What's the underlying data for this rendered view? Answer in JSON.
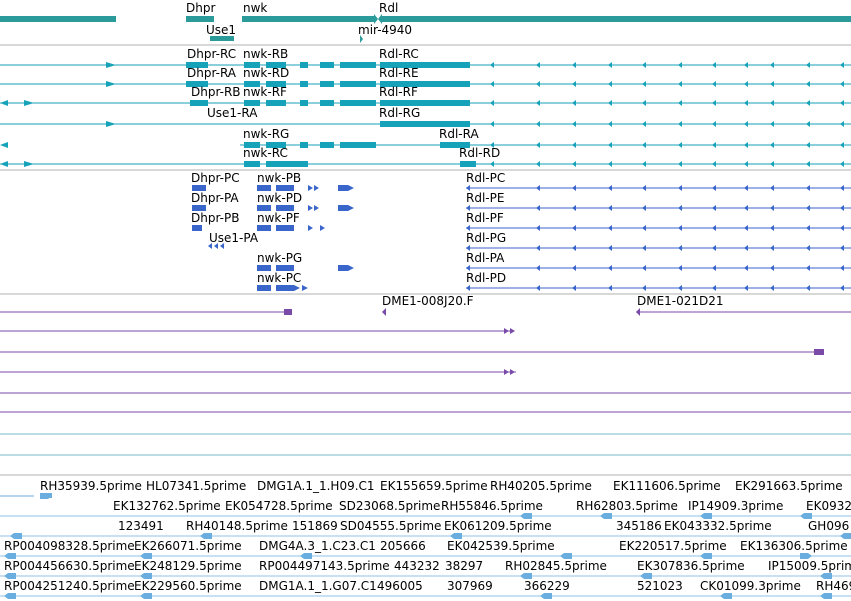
{
  "colors": {
    "gene": "#2a9a9a",
    "transcript_fly": "#16a2b8",
    "transcript_flyproj": "#3a66cc",
    "clone": "#7a4aa8",
    "est": "#6aaee0",
    "separator": "#b0b0b0"
  },
  "gene_labels": {
    "dhpr": "Dhpr",
    "nwk": "nwk",
    "rdl": "Rdl",
    "use1": "Use1",
    "mir": "mir-4940"
  },
  "transcripts_a": [
    {
      "label": "Dhpr-RC"
    },
    {
      "label": "nwk-RB"
    },
    {
      "label": "Rdl-RC"
    },
    {
      "label": "Dhpr-RA"
    },
    {
      "label": "nwk-RD"
    },
    {
      "label": "Rdl-RE"
    },
    {
      "label": "Dhpr-RB"
    },
    {
      "label": "nwk-RF"
    },
    {
      "label": "Rdl-RF"
    },
    {
      "label": "Use1-RA"
    },
    {
      "label": "Rdl-RG"
    },
    {
      "label": "nwk-RG"
    },
    {
      "label": "Rdl-RA"
    },
    {
      "label": "nwk-RC"
    },
    {
      "label": "Rdl-RD"
    }
  ],
  "transcripts_b": [
    {
      "label": "Dhpr-PC"
    },
    {
      "label": "nwk-PB"
    },
    {
      "label": "Rdl-PC"
    },
    {
      "label": "Dhpr-PA"
    },
    {
      "label": "nwk-PD"
    },
    {
      "label": "Rdl-PE"
    },
    {
      "label": "Dhpr-PB"
    },
    {
      "label": "nwk-PF"
    },
    {
      "label": "Rdl-PF"
    },
    {
      "label": "Use1-PA"
    },
    {
      "label": "Rdl-PG"
    },
    {
      "label": "nwk-PG"
    },
    {
      "label": "Rdl-PA"
    },
    {
      "label": "nwk-PC"
    },
    {
      "label": "Rdl-PD"
    }
  ],
  "clone_labels": [
    {
      "label": "DME1-008J20.F"
    },
    {
      "label": "DME1-021D21"
    }
  ],
  "est_labels": [
    {
      "label": "RH35939.5prime"
    },
    {
      "label": "HL07341.5prime"
    },
    {
      "label": "DMG1A.1_1.H09.C1"
    },
    {
      "label": "EK155659.5prime"
    },
    {
      "label": "RH40205.5prime"
    },
    {
      "label": "EK111606.5prime"
    },
    {
      "label": "EK291663.5prime"
    },
    {
      "label": "EK132762.5prime"
    },
    {
      "label": "EK054728.5prime"
    },
    {
      "label": "SD23068.5prime"
    },
    {
      "label": "RH55846.5prime"
    },
    {
      "label": "RH62803.5prime"
    },
    {
      "label": "IP14909.3prime"
    },
    {
      "label": "EK0932"
    },
    {
      "label": "123491"
    },
    {
      "label": "RH40148.5prime"
    },
    {
      "label": "151869"
    },
    {
      "label": "SD04555.5prime"
    },
    {
      "label": "EK061209.5prime"
    },
    {
      "label": "345186"
    },
    {
      "label": "EK043332.5prime"
    },
    {
      "label": "GH096"
    },
    {
      "label": "RP004098328.5prime"
    },
    {
      "label": "EK266071.5prime"
    },
    {
      "label": "DMG4A.3_1.C23.C1"
    },
    {
      "label": "205666"
    },
    {
      "label": "EK042539.5prime"
    },
    {
      "label": "EK220517.5prime"
    },
    {
      "label": "EK136306.5prime"
    },
    {
      "label": "RP004456630.5prime"
    },
    {
      "label": "EK248129.5prime"
    },
    {
      "label": "RP004497143.5prime"
    },
    {
      "label": "443232"
    },
    {
      "label": "38297"
    },
    {
      "label": "RH02845.5prime"
    },
    {
      "label": "EK307836.5prime"
    },
    {
      "label": "IP15009.5prime"
    },
    {
      "label": "RP004251240.5prime"
    },
    {
      "label": "EK229560.5prime"
    },
    {
      "label": "DMG1A.1_1.G07.C1"
    },
    {
      "label": "496005"
    },
    {
      "label": "307969"
    },
    {
      "label": "366229"
    },
    {
      "label": "521023"
    },
    {
      "label": "CK01099.3prime"
    },
    {
      "label": "RH469"
    }
  ]
}
